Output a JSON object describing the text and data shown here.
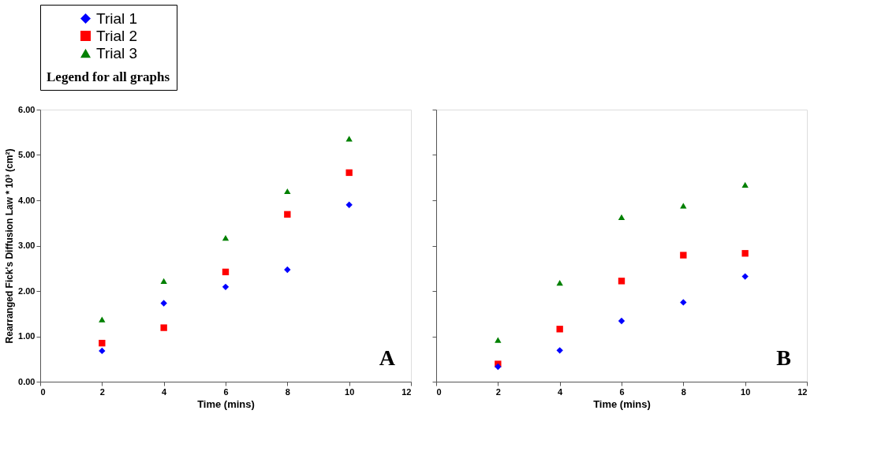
{
  "chart_data": [
    {
      "type": "scatter",
      "xlabel": "Time (mins)",
      "ylabel": "Rearranged Fick's Diffusion Law * 10³ (cm²)",
      "legend_title": "Legend for all graphs",
      "legend": "top",
      "grid": false,
      "xlim": [
        0,
        12
      ],
      "xticks": [
        0,
        2,
        4,
        6,
        8,
        10,
        12
      ],
      "ylim": [
        0,
        6
      ],
      "yticks": [
        {
          "value": 0,
          "label": "0.00"
        },
        {
          "value": 1,
          "label": "1.00"
        },
        {
          "value": 2,
          "label": "2.00"
        },
        {
          "value": 3,
          "label": "3.00"
        },
        {
          "value": 4,
          "label": "4.00"
        },
        {
          "value": 5,
          "label": "5.00"
        },
        {
          "value": 6,
          "label": "6.00"
        }
      ],
      "annotations": [
        "A"
      ],
      "series": [
        {
          "name": "Trial 1",
          "color": "#0000ff",
          "marker": "diamond",
          "x": [
            2,
            4,
            6,
            8,
            10
          ],
          "values": [
            0.68,
            1.73,
            2.09,
            2.47,
            3.9
          ]
        },
        {
          "name": "Trial 2",
          "color": "#ff0000",
          "marker": "square",
          "x": [
            2,
            4,
            6,
            8,
            10
          ],
          "values": [
            0.85,
            1.19,
            2.42,
            3.69,
            4.61
          ]
        },
        {
          "name": "Trial 3",
          "color": "#008000",
          "marker": "triangle",
          "x": [
            2,
            4,
            6,
            8,
            10
          ],
          "values": [
            1.37,
            2.22,
            3.17,
            4.2,
            5.36
          ]
        }
      ]
    },
    {
      "type": "scatter",
      "xlabel": "Time (mins)",
      "grid": false,
      "tick_labels": "x",
      "xlim": [
        0,
        12
      ],
      "xticks": [
        0,
        2,
        4,
        6,
        8,
        10,
        12
      ],
      "ylim": [
        0,
        6
      ],
      "yticks": [
        {
          "value": 0,
          "label": null
        },
        {
          "value": 1,
          "label": null
        },
        {
          "value": 2,
          "label": null
        },
        {
          "value": 3,
          "label": null
        },
        {
          "value": 4,
          "label": null
        },
        {
          "value": 5,
          "label": null
        },
        {
          "value": 6,
          "label": null
        }
      ],
      "annotations": [
        "B"
      ],
      "series": [
        {
          "name": "Trial 1",
          "color": "#0000ff",
          "marker": "diamond",
          "x": [
            2,
            4,
            6,
            8,
            10
          ],
          "values": [
            0.33,
            0.69,
            1.34,
            1.75,
            2.32
          ]
        },
        {
          "name": "Trial 2",
          "color": "#ff0000",
          "marker": "square",
          "x": [
            2,
            4,
            6,
            8,
            10
          ],
          "values": [
            0.39,
            1.16,
            2.22,
            2.79,
            2.83
          ]
        },
        {
          "name": "Trial 3",
          "color": "#008000",
          "marker": "triangle",
          "x": [
            2,
            4,
            6,
            8,
            10
          ],
          "values": [
            0.92,
            2.18,
            3.63,
            3.88,
            4.34
          ]
        }
      ]
    }
  ]
}
